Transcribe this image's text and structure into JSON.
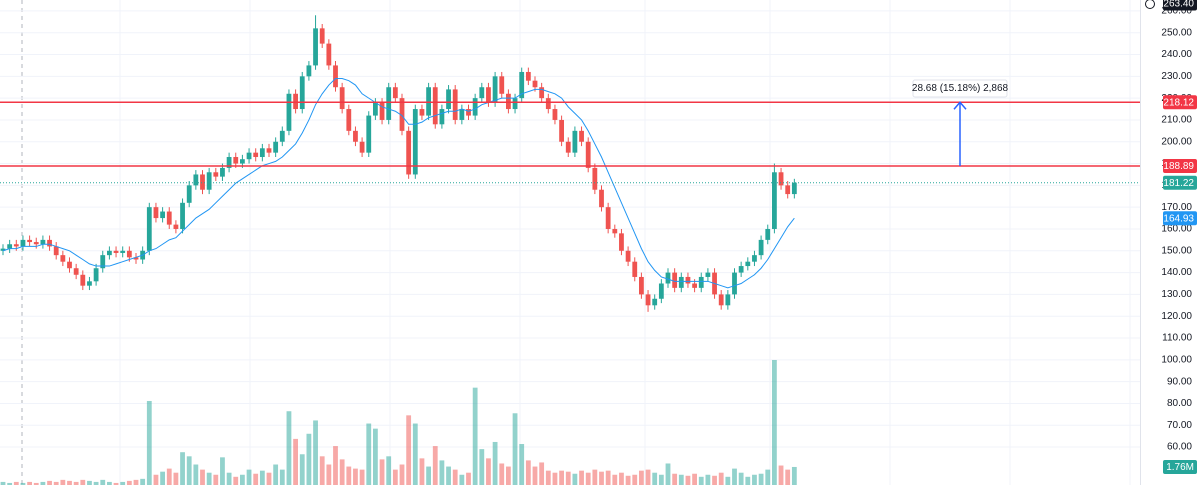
{
  "chart_data": {
    "type": "candlestick",
    "ylim": [
      42.6,
      265
    ],
    "yticks": [
      {
        "value": 60,
        "label": "60.00"
      },
      {
        "value": 70,
        "label": "70.00"
      },
      {
        "value": 80,
        "label": "80.00"
      },
      {
        "value": 90,
        "label": "90.00"
      },
      {
        "value": 100,
        "label": "100.00"
      },
      {
        "value": 110,
        "label": "110.00"
      },
      {
        "value": 120,
        "label": "120.00"
      },
      {
        "value": 130,
        "label": "130.00"
      },
      {
        "value": 140,
        "label": "140.00"
      },
      {
        "value": 150,
        "label": "150.00"
      },
      {
        "value": 160,
        "label": "160.00"
      },
      {
        "value": 170,
        "label": "170.00"
      },
      {
        "value": 180,
        "label": "180.00"
      },
      {
        "value": 190,
        "label": "190.00"
      },
      {
        "value": 200,
        "label": "200.00"
      },
      {
        "value": 210,
        "label": "210.00"
      },
      {
        "value": 220,
        "label": "220.00"
      },
      {
        "value": 230,
        "label": "230.00"
      },
      {
        "value": 240,
        "label": "240.00"
      },
      {
        "value": 250,
        "label": "250.00"
      },
      {
        "value": 260,
        "label": "260.00"
      }
    ],
    "grid": true,
    "up_color": "#26a69a",
    "down_color": "#ef5350",
    "open": [
      150,
      151,
      153,
      152,
      155,
      154,
      153,
      155,
      152,
      148,
      145,
      142,
      139,
      134,
      136,
      142,
      148,
      150,
      149,
      150,
      147,
      146,
      150,
      170,
      165,
      168,
      162,
      160,
      172,
      180,
      185,
      178,
      186,
      184,
      188,
      193,
      190,
      192,
      195,
      193,
      197,
      195,
      200,
      205,
      222,
      215,
      230,
      235,
      252,
      245,
      235,
      225,
      215,
      205,
      200,
      195,
      212,
      218,
      210,
      225,
      220,
      205,
      185,
      215,
      212,
      225,
      208,
      215,
      224,
      210,
      215,
      212,
      220,
      225,
      218,
      230,
      222,
      215,
      220,
      232,
      228,
      225,
      220,
      215,
      210,
      200,
      195,
      205,
      200,
      188,
      178,
      170,
      160,
      158,
      150,
      145,
      138,
      130,
      125,
      128,
      135,
      140,
      133,
      138,
      135,
      133,
      138,
      140,
      130,
      125,
      130,
      140,
      143,
      145,
      148,
      155,
      160,
      186,
      180,
      176
    ],
    "high": [
      153,
      155,
      155,
      157,
      157,
      156,
      157,
      157,
      154,
      150,
      147,
      144,
      141,
      138,
      144,
      150,
      152,
      152,
      152,
      152,
      149,
      152,
      172,
      172,
      170,
      170,
      164,
      174,
      182,
      187,
      187,
      188,
      188,
      190,
      195,
      195,
      194,
      197,
      197,
      199,
      199,
      202,
      207,
      224,
      224,
      232,
      237,
      258,
      254,
      247,
      237,
      227,
      217,
      207,
      202,
      214,
      220,
      220,
      227,
      227,
      222,
      207,
      217,
      217,
      227,
      227,
      217,
      226,
      226,
      217,
      217,
      222,
      227,
      227,
      232,
      232,
      224,
      222,
      234,
      234,
      230,
      227,
      222,
      217,
      212,
      202,
      207,
      207,
      202,
      190,
      180,
      172,
      162,
      160,
      152,
      147,
      140,
      132,
      130,
      137,
      142,
      142,
      140,
      140,
      137,
      140,
      142,
      142,
      132,
      132,
      142,
      145,
      147,
      150,
      157,
      162,
      190,
      188,
      182,
      183
    ],
    "low": [
      148,
      149,
      150,
      150,
      152,
      151,
      151,
      150,
      146,
      143,
      140,
      137,
      132,
      132,
      134,
      140,
      146,
      147,
      147,
      145,
      144,
      144,
      148,
      163,
      163,
      160,
      158,
      158,
      170,
      178,
      176,
      176,
      182,
      182,
      186,
      188,
      188,
      190,
      191,
      191,
      193,
      193,
      198,
      203,
      213,
      213,
      228,
      233,
      243,
      233,
      223,
      213,
      203,
      198,
      193,
      193,
      210,
      208,
      208,
      218,
      203,
      183,
      183,
      210,
      210,
      206,
      206,
      213,
      208,
      208,
      210,
      210,
      218,
      216,
      216,
      220,
      213,
      213,
      218,
      226,
      223,
      218,
      213,
      208,
      198,
      193,
      193,
      198,
      186,
      176,
      168,
      158,
      156,
      148,
      143,
      136,
      128,
      122,
      123,
      126,
      133,
      131,
      131,
      133,
      131,
      131,
      136,
      128,
      123,
      123,
      128,
      138,
      141,
      143,
      146,
      153,
      158,
      178,
      174,
      174
    ],
    "close": [
      151,
      153,
      152,
      155,
      154,
      153,
      155,
      152,
      148,
      145,
      142,
      139,
      134,
      136,
      142,
      148,
      150,
      149,
      150,
      147,
      146,
      150,
      170,
      165,
      168,
      162,
      160,
      172,
      180,
      185,
      178,
      186,
      184,
      188,
      193,
      190,
      192,
      195,
      193,
      197,
      195,
      200,
      205,
      222,
      215,
      230,
      235,
      252,
      245,
      235,
      225,
      215,
      205,
      200,
      195,
      212,
      218,
      210,
      225,
      220,
      205,
      185,
      215,
      212,
      225,
      208,
      215,
      224,
      210,
      215,
      212,
      220,
      225,
      218,
      230,
      222,
      215,
      220,
      232,
      228,
      225,
      220,
      215,
      210,
      200,
      195,
      205,
      200,
      188,
      178,
      170,
      160,
      158,
      150,
      145,
      138,
      130,
      125,
      128,
      135,
      140,
      133,
      138,
      135,
      133,
      138,
      140,
      130,
      125,
      130,
      140,
      143,
      145,
      148,
      155,
      160,
      186,
      180,
      176,
      181.22
    ],
    "volume": [
      0.3,
      0.2,
      0.3,
      0.2,
      0.3,
      0.2,
      0.3,
      0.4,
      0.3,
      0.5,
      0.4,
      0.3,
      0.5,
      0.4,
      0.3,
      0.5,
      0.3,
      0.2,
      0.3,
      0.4,
      0.5,
      0.6,
      8.2,
      1.0,
      1.3,
      1.6,
      1.2,
      3.2,
      2.8,
      2.0,
      1.5,
      1.2,
      1.0,
      2.7,
      1.2,
      0.8,
      1.0,
      1.5,
      1.1,
      1.4,
      1.2,
      2.0,
      1.5,
      7.2,
      4.5,
      3.0,
      5.0,
      6.3,
      2.8,
      2.0,
      3.8,
      2.5,
      1.8,
      1.6,
      1.5,
      6.0,
      5.5,
      2.5,
      2.8,
      1.5,
      2.0,
      6.8,
      6.0,
      2.6,
      1.8,
      3.8,
      2.4,
      1.8,
      1.5,
      1.0,
      1.2,
      9.5,
      3.5,
      2.6,
      4.2,
      2.1,
      1.8,
      7.0,
      4.0,
      2.4,
      1.8,
      2.2,
      1.4,
      1.2,
      1.4,
      1.3,
      1.1,
      1.4,
      1.2,
      1.5,
      1.3,
      1.4,
      1.0,
      1.2,
      0.9,
      1.0,
      1.4,
      1.5,
      1.2,
      1.0,
      2.1,
      1.1,
      1.0,
      0.9,
      1.1,
      0.8,
      1.0,
      0.9,
      1.2,
      0.8,
      1.6,
      1.2,
      0.8,
      1.0,
      1.1,
      1.5,
      12.2,
      1.9,
      1.5,
      1.76
    ],
    "last_volume_label": "1.76M",
    "ma": [
      150,
      151,
      151,
      152,
      152,
      152,
      153,
      153,
      152,
      151,
      150,
      148,
      146,
      144,
      143,
      143,
      143,
      144,
      145,
      146,
      147,
      148,
      150,
      151,
      153,
      155,
      156,
      159,
      162,
      165,
      167,
      169,
      172,
      175,
      178,
      181,
      183,
      185,
      187,
      189,
      190,
      191,
      193,
      196,
      199,
      204,
      210,
      217,
      222,
      226,
      229,
      229,
      228,
      226,
      222,
      220,
      218,
      216,
      215,
      214,
      212,
      208,
      208,
      209,
      211,
      212,
      213,
      214,
      214,
      215,
      214,
      215,
      217,
      218,
      219,
      220,
      220,
      220,
      222,
      223,
      224,
      224,
      223,
      222,
      220,
      216,
      213,
      210,
      205,
      199,
      193,
      186,
      179,
      172,
      165,
      158,
      151,
      145,
      141,
      138,
      137,
      136,
      136,
      136,
      136,
      136,
      136,
      135,
      134,
      133,
      134,
      135,
      137,
      139,
      142,
      146,
      151,
      156,
      161,
      164.93
    ],
    "ma_color": "#2196f3",
    "hlines": [
      218.12,
      188.89
    ],
    "hline_color": "#f23645",
    "crosshair": {
      "value": 263.4,
      "label": "263.40"
    },
    "measure_label": "28.68 (15.18%) 2,868",
    "measure_color": "#2962ff"
  }
}
